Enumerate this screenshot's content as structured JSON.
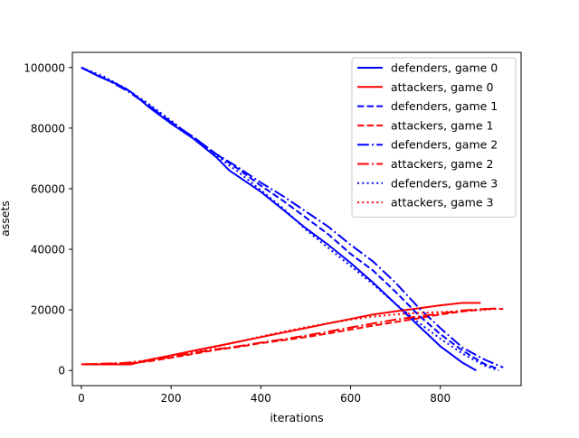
{
  "chart_data": {
    "type": "line",
    "title": "",
    "xlabel": "iterations",
    "ylabel": "assets",
    "xlim": [
      -20,
      980
    ],
    "ylim": [
      -5000,
      105000
    ],
    "xticks": [
      0,
      200,
      400,
      600,
      800
    ],
    "yticks": [
      0,
      20000,
      40000,
      60000,
      80000,
      100000
    ],
    "xtick_labels": [
      "0",
      "200",
      "400",
      "600",
      "800"
    ],
    "ytick_labels": [
      "0",
      "20000",
      "40000",
      "60000",
      "80000",
      "100000"
    ],
    "grid": false,
    "legend_position": "top-right",
    "series": [
      {
        "name": "defenders, game 0",
        "color": "#0000ff",
        "style": "solid",
        "points": [
          [
            0,
            100000
          ],
          [
            40,
            97000
          ],
          [
            80,
            94500
          ],
          [
            110,
            92000
          ],
          [
            150,
            87000
          ],
          [
            200,
            81500
          ],
          [
            250,
            76500
          ],
          [
            300,
            70500
          ],
          [
            330,
            66000
          ],
          [
            400,
            59000
          ],
          [
            450,
            53000
          ],
          [
            500,
            47000
          ],
          [
            550,
            41500
          ],
          [
            600,
            35500
          ],
          [
            650,
            29000
          ],
          [
            700,
            22000
          ],
          [
            750,
            15000
          ],
          [
            800,
            8000
          ],
          [
            850,
            2500
          ],
          [
            880,
            0
          ]
        ]
      },
      {
        "name": "attackers, game 0",
        "color": "#ff0000",
        "style": "solid",
        "points": [
          [
            0,
            2000
          ],
          [
            50,
            2000
          ],
          [
            110,
            2000
          ],
          [
            150,
            3500
          ],
          [
            200,
            5000
          ],
          [
            250,
            6500
          ],
          [
            300,
            8000
          ],
          [
            350,
            9500
          ],
          [
            400,
            11000
          ],
          [
            450,
            12500
          ],
          [
            500,
            14000
          ],
          [
            550,
            15500
          ],
          [
            600,
            17000
          ],
          [
            650,
            18500
          ],
          [
            700,
            19500
          ],
          [
            750,
            20500
          ],
          [
            800,
            21500
          ],
          [
            850,
            22300
          ],
          [
            890,
            22300
          ]
        ]
      },
      {
        "name": "defenders, game 1",
        "color": "#0000ff",
        "style": "dashed",
        "points": [
          [
            0,
            100000
          ],
          [
            50,
            96500
          ],
          [
            100,
            93000
          ],
          [
            150,
            87500
          ],
          [
            200,
            82000
          ],
          [
            250,
            77000
          ],
          [
            300,
            71500
          ],
          [
            350,
            66500
          ],
          [
            400,
            61000
          ],
          [
            450,
            56000
          ],
          [
            500,
            50500
          ],
          [
            550,
            45000
          ],
          [
            600,
            38500
          ],
          [
            650,
            33000
          ],
          [
            700,
            26000
          ],
          [
            750,
            18500
          ],
          [
            800,
            12000
          ],
          [
            850,
            6500
          ],
          [
            900,
            2000
          ],
          [
            930,
            500
          ]
        ]
      },
      {
        "name": "attackers, game 1",
        "color": "#ff0000",
        "style": "dashed",
        "points": [
          [
            0,
            2000
          ],
          [
            50,
            2200
          ],
          [
            100,
            2300
          ],
          [
            150,
            3000
          ],
          [
            200,
            4200
          ],
          [
            250,
            5500
          ],
          [
            300,
            6800
          ],
          [
            350,
            7800
          ],
          [
            400,
            9000
          ],
          [
            450,
            10000
          ],
          [
            500,
            11000
          ],
          [
            550,
            12200
          ],
          [
            600,
            13500
          ],
          [
            650,
            14800
          ],
          [
            700,
            16000
          ],
          [
            750,
            17200
          ],
          [
            800,
            18500
          ],
          [
            850,
            19500
          ],
          [
            900,
            20300
          ],
          [
            930,
            20500
          ]
        ]
      },
      {
        "name": "defenders, game 2",
        "color": "#0000ff",
        "style": "dashdot",
        "points": [
          [
            0,
            100000
          ],
          [
            50,
            96500
          ],
          [
            100,
            92500
          ],
          [
            150,
            87500
          ],
          [
            200,
            82000
          ],
          [
            250,
            77000
          ],
          [
            300,
            71500
          ],
          [
            350,
            67000
          ],
          [
            400,
            62000
          ],
          [
            450,
            57500
          ],
          [
            500,
            52500
          ],
          [
            550,
            47500
          ],
          [
            600,
            41500
          ],
          [
            650,
            36000
          ],
          [
            700,
            29000
          ],
          [
            750,
            21000
          ],
          [
            800,
            14000
          ],
          [
            850,
            7500
          ],
          [
            900,
            3500
          ],
          [
            940,
            1000
          ]
        ]
      },
      {
        "name": "attackers, game 2",
        "color": "#ff0000",
        "style": "dashdot",
        "points": [
          [
            0,
            2000
          ],
          [
            50,
            2200
          ],
          [
            100,
            2500
          ],
          [
            150,
            3200
          ],
          [
            200,
            4500
          ],
          [
            250,
            5800
          ],
          [
            300,
            7000
          ],
          [
            350,
            8000
          ],
          [
            400,
            9200
          ],
          [
            450,
            10300
          ],
          [
            500,
            11500
          ],
          [
            550,
            12800
          ],
          [
            600,
            14200
          ],
          [
            650,
            15500
          ],
          [
            700,
            16800
          ],
          [
            750,
            17800
          ],
          [
            800,
            18800
          ],
          [
            850,
            19800
          ],
          [
            900,
            20300
          ],
          [
            940,
            20300
          ]
        ]
      },
      {
        "name": "defenders, game 3",
        "color": "#0000ff",
        "style": "dotted",
        "points": [
          [
            0,
            100000
          ],
          [
            50,
            97000
          ],
          [
            100,
            93000
          ],
          [
            150,
            88000
          ],
          [
            200,
            82500
          ],
          [
            250,
            76500
          ],
          [
            300,
            71000
          ],
          [
            350,
            65500
          ],
          [
            400,
            59500
          ],
          [
            450,
            53500
          ],
          [
            500,
            46500
          ],
          [
            550,
            40500
          ],
          [
            600,
            34500
          ],
          [
            650,
            28500
          ],
          [
            700,
            22000
          ],
          [
            750,
            16000
          ],
          [
            800,
            10500
          ],
          [
            850,
            5500
          ],
          [
            900,
            1500
          ],
          [
            930,
            0
          ]
        ]
      },
      {
        "name": "attackers, game 3",
        "color": "#ff0000",
        "style": "dotted",
        "points": [
          [
            0,
            2000
          ],
          [
            50,
            2200
          ],
          [
            100,
            2500
          ],
          [
            150,
            3500
          ],
          [
            200,
            4800
          ],
          [
            250,
            6200
          ],
          [
            300,
            7800
          ],
          [
            350,
            9500
          ],
          [
            400,
            11200
          ],
          [
            450,
            12800
          ],
          [
            500,
            14300
          ],
          [
            550,
            15600
          ],
          [
            600,
            16800
          ],
          [
            650,
            17800
          ],
          [
            700,
            18500
          ],
          [
            750,
            19000
          ],
          [
            800,
            19300
          ],
          [
            850,
            19600
          ],
          [
            900,
            20000
          ],
          [
            930,
            20500
          ]
        ]
      }
    ]
  }
}
